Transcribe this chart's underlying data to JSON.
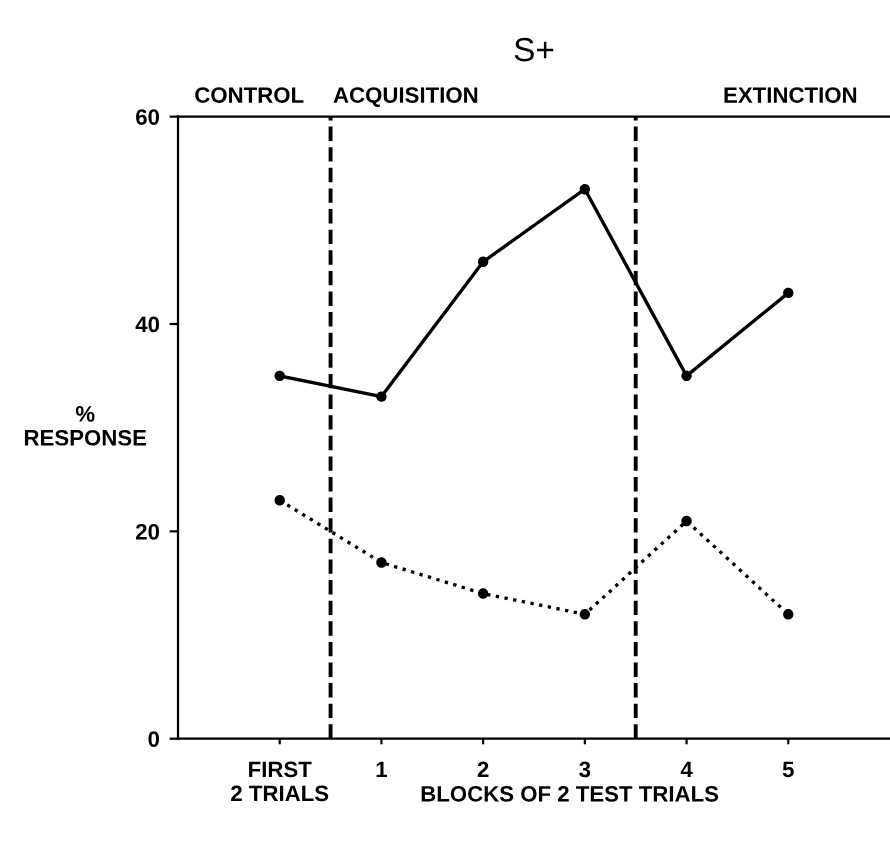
{
  "chart_data": {
    "type": "line",
    "title": "S+",
    "ylabel": "%\nRESPONSE",
    "xlabel": "BLOCKS OF 2 TEST TRIALS",
    "x": [
      0,
      1,
      2,
      3,
      4,
      5
    ],
    "xlim": [
      -1,
      6
    ],
    "xticks": [
      {
        "value": 0,
        "label": "FIRST\n2 TRIALS"
      },
      1,
      2,
      3,
      4,
      5
    ],
    "ylim": [
      0,
      60
    ],
    "yticks": [
      0,
      20,
      40,
      60
    ],
    "series": [
      {
        "color": "#000000",
        "line_style": "solid",
        "values": [
          35,
          33,
          46,
          53,
          35,
          43
        ]
      },
      {
        "color": "#000000",
        "line_style": "dotted",
        "values": [
          23,
          17,
          14,
          12,
          21,
          12
        ]
      }
    ],
    "marker": "circle",
    "grid": false,
    "legend": false,
    "ref_lines": [
      {
        "axis": "x",
        "value": 0.5,
        "line_style": "dashed",
        "color": "#000000"
      },
      {
        "axis": "x",
        "value": 3.5,
        "line_style": "dashed",
        "color": "#000000"
      }
    ],
    "annotations": [
      "CONTROL",
      "ACQUISITION",
      "EXTINCTION"
    ]
  }
}
